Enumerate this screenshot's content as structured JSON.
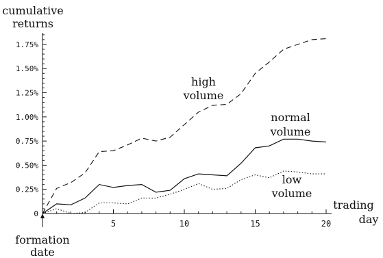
{
  "chart_data": {
    "type": "line",
    "ylabel": [
      "cumulative",
      "returns"
    ],
    "xlabel": [
      "trading",
      "day"
    ],
    "annotation": [
      "formation",
      "date"
    ],
    "xlim": [
      0,
      20
    ],
    "ylim": [
      0,
      1.87
    ],
    "xticks": [
      5,
      10,
      15,
      20
    ],
    "yticks": [
      {
        "value": 0,
        "label": "0"
      },
      {
        "value": 0.25,
        "label": "0.25%"
      },
      {
        "value": 0.5,
        "label": "0.50%"
      },
      {
        "value": 0.75,
        "label": "0.75%"
      },
      {
        "value": 1.0,
        "label": "1.00%"
      },
      {
        "value": 1.25,
        "label": "1.25%"
      },
      {
        "value": 1.5,
        "label": "1.50%"
      },
      {
        "value": 1.75,
        "label": "1.75%"
      }
    ],
    "grid": false,
    "legend": "none",
    "x": [
      0,
      1,
      2,
      3,
      4,
      5,
      6,
      7,
      8,
      9,
      10,
      11,
      12,
      13,
      14,
      15,
      16,
      17,
      18,
      19,
      20
    ],
    "series": [
      {
        "label": [
          "high",
          "volume"
        ],
        "style": "dashed",
        "values": [
          0,
          0.26,
          0.32,
          0.42,
          0.64,
          0.65,
          0.71,
          0.78,
          0.75,
          0.79,
          0.92,
          1.05,
          1.12,
          1.13,
          1.24,
          1.45,
          1.57,
          1.7,
          1.75,
          1.8,
          1.81
        ]
      },
      {
        "label": [
          "normal",
          "volume"
        ],
        "style": "solid",
        "values": [
          0,
          0.1,
          0.09,
          0.16,
          0.3,
          0.27,
          0.29,
          0.3,
          0.22,
          0.24,
          0.36,
          0.41,
          0.4,
          0.39,
          0.52,
          0.68,
          0.7,
          0.77,
          0.77,
          0.75,
          0.74
        ]
      },
      {
        "label": [
          "low",
          "volume"
        ],
        "style": "dotted",
        "values": [
          0,
          0.05,
          0.0,
          0.01,
          0.11,
          0.11,
          0.1,
          0.16,
          0.16,
          0.2,
          0.25,
          0.31,
          0.25,
          0.26,
          0.35,
          0.4,
          0.37,
          0.44,
          0.43,
          0.41,
          0.41
        ]
      }
    ]
  }
}
